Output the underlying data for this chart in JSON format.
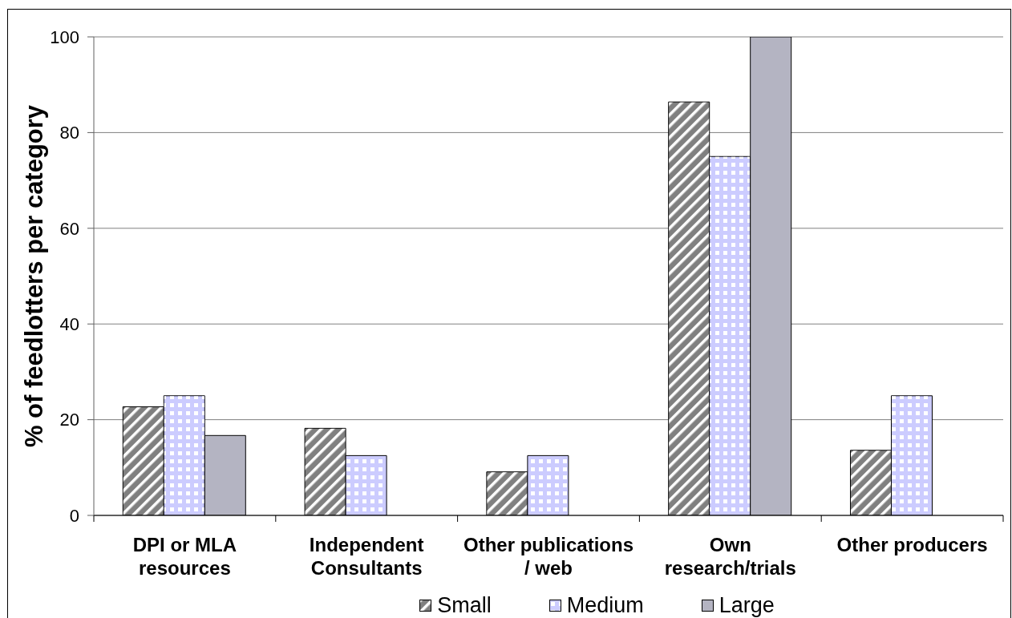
{
  "chart_data": {
    "type": "bar",
    "ylabel": "% of feedlotters per category",
    "categories": [
      "DPI or MLA resources",
      "Independent Consultants",
      "Other publications / web",
      "Own research/trials",
      "Other producers"
    ],
    "series": [
      {
        "name": "Small",
        "color": "#808080",
        "values": [
          22.7,
          18.2,
          9.1,
          86.4,
          13.6
        ]
      },
      {
        "name": "Medium",
        "color": "#ccccff",
        "values": [
          25,
          12.5,
          12.5,
          75,
          25
        ]
      },
      {
        "name": "Large",
        "color": "#b4b4c2",
        "values": [
          16.7,
          null,
          null,
          100,
          null
        ]
      }
    ],
    "ylim": [
      0,
      100
    ],
    "yticks": [
      0,
      20,
      40,
      60,
      80,
      100
    ],
    "grid": "y",
    "legend": "bottom"
  }
}
